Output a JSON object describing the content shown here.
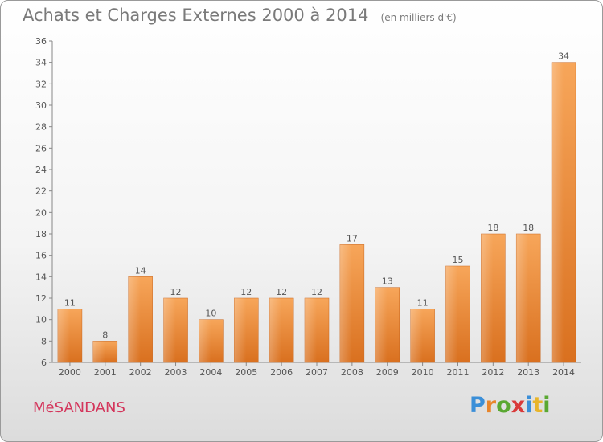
{
  "header": {
    "title": "Achats et Charges Externes 2000 à 2014",
    "subtitle": "(en milliers d'€)"
  },
  "commune": "MéSANDANS",
  "logo": {
    "text": "Proxiti",
    "letters": [
      {
        "ch": "P",
        "color": "#3b8fd8"
      },
      {
        "ch": "r",
        "color": "#e8852a"
      },
      {
        "ch": "o",
        "color": "#5aa832"
      },
      {
        "ch": "x",
        "color": "#d93a3a"
      },
      {
        "ch": "i",
        "color": "#3b8fd8"
      },
      {
        "ch": "t",
        "color": "#e8b52a"
      },
      {
        "ch": "i",
        "color": "#5aa832"
      }
    ]
  },
  "chart_data": {
    "type": "bar",
    "categories": [
      "2000",
      "2001",
      "2002",
      "2003",
      "2004",
      "2005",
      "2006",
      "2007",
      "2008",
      "2009",
      "2010",
      "2011",
      "2012",
      "2013",
      "2014"
    ],
    "values": [
      11,
      8,
      14,
      12,
      10,
      12,
      12,
      12,
      17,
      13,
      11,
      15,
      18,
      18,
      34
    ],
    "title": "Achats et Charges Externes 2000 à 2014",
    "subtitle": "(en milliers d'€)",
    "xlabel": "",
    "ylabel": "",
    "ylim": [
      6,
      36
    ],
    "yticks": [
      6,
      8,
      10,
      12,
      14,
      16,
      18,
      20,
      22,
      24,
      26,
      28,
      30,
      32,
      34,
      36
    ],
    "grid": false,
    "bar_color": "#f0973e"
  }
}
